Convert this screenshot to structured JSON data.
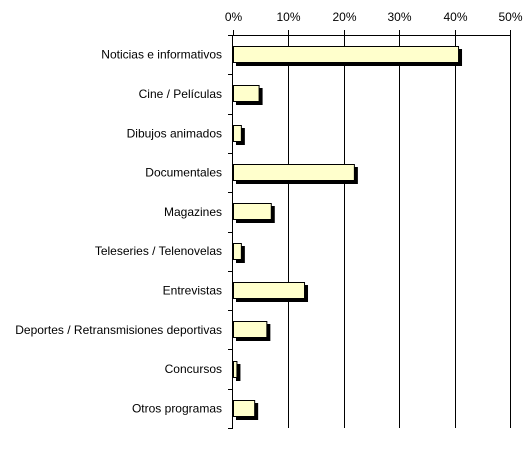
{
  "chart_data": {
    "type": "bar",
    "orientation": "horizontal",
    "title": "",
    "xlabel": "",
    "ylabel": "",
    "xlim": [
      0,
      50
    ],
    "x_ticks": [
      "0%",
      "10%",
      "20%",
      "30%",
      "40%",
      "50%"
    ],
    "x_tick_values": [
      0,
      10,
      20,
      30,
      40,
      50
    ],
    "axis_position": "top",
    "grid": "vertical",
    "legend": "none",
    "categories": [
      "Noticias e informativos",
      "Cine / Películas",
      "Dibujos animados",
      "Documentales",
      "Magazines",
      "Teleseries / Telenovelas",
      "Entrevistas",
      "Deportes / Retransmisiones deportivas",
      "Concursos",
      "Otros programas"
    ],
    "values": [
      40.8,
      4.8,
      1.6,
      22.0,
      7.0,
      1.6,
      13.0,
      6.2,
      0.8,
      4.0
    ],
    "colors": {
      "bar_fill": "#ffffcc",
      "bar_edge": "#000000",
      "bar_shadow": "#000000",
      "grid": "#000000",
      "background": "#ffffff"
    }
  }
}
